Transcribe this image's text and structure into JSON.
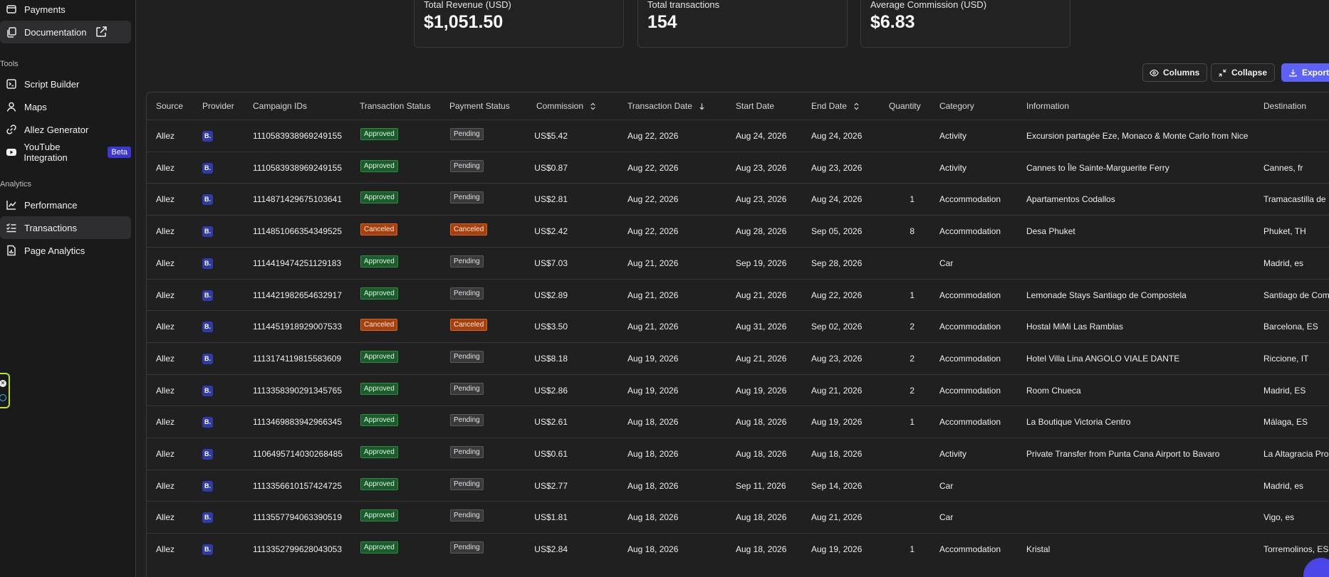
{
  "sidebar": {
    "items_top": [
      {
        "label": "Payments",
        "icon": "wallet-icon"
      },
      {
        "label": "Documentation",
        "icon": "documents-icon",
        "external": "external-link-icon"
      }
    ],
    "tools_label": "Tools",
    "tools": [
      {
        "label": "Script Builder",
        "icon": "script-icon"
      },
      {
        "label": "Maps",
        "icon": "user-icon"
      },
      {
        "label": "Allez Generator",
        "icon": "link-icon"
      },
      {
        "label": "YouTube Integration",
        "icon": "youtube-icon",
        "badge": "Beta"
      }
    ],
    "analytics_label": "Analytics",
    "analytics": [
      {
        "label": "Performance",
        "icon": "line-chart-icon"
      },
      {
        "label": "Transactions",
        "icon": "list-check-icon",
        "active": true
      },
      {
        "label": "Page Analytics",
        "icon": "file-chart-icon"
      }
    ]
  },
  "stats": [
    {
      "label": "Total Revenue (USD)",
      "value": "$1,051.50"
    },
    {
      "label": "Total transactions",
      "value": "154"
    },
    {
      "label": "Average Commission (USD)",
      "value": "$6.83"
    }
  ],
  "toolbar": {
    "columns_label": "Columns",
    "collapse_label": "Collapse",
    "export_label": "Export",
    "accent": "#5b62f5"
  },
  "table": {
    "headers": {
      "source": "Source",
      "provider": "Provider",
      "campaign": "Campaign IDs",
      "tx_status": "Transaction Status",
      "pay_status": "Payment Status",
      "commission": "Commission",
      "tx_date": "Transaction Date",
      "start": "Start Date",
      "end": "End Date",
      "qty": "Quantity",
      "category": "Category",
      "info": "Information",
      "dest": "Destination"
    },
    "provider_badge": "B.",
    "rows": [
      {
        "source": "Allez",
        "campaign": "1110583938969249155",
        "tx": "Approved",
        "pay": "Pending",
        "commission": "US$5.42",
        "txdate": "Aug 22, 2026",
        "start": "Aug 24, 2026",
        "end": "Aug 24, 2026",
        "qty": "",
        "category": "Activity",
        "info": "Excursion partagée Eze, Monaco & Monte Carlo from Nice",
        "dest": ""
      },
      {
        "source": "Allez",
        "campaign": "1110583938969249155",
        "tx": "Approved",
        "pay": "Pending",
        "commission": "US$0.87",
        "txdate": "Aug 22, 2026",
        "start": "Aug 23, 2026",
        "end": "Aug 23, 2026",
        "qty": "",
        "category": "Activity",
        "info": "Cannes to Île Sainte-Marguerite Ferry",
        "dest": "Cannes, fr"
      },
      {
        "source": "Allez",
        "campaign": "1114871429675103641",
        "tx": "Approved",
        "pay": "Pending",
        "commission": "US$2.81",
        "txdate": "Aug 22, 2026",
        "start": "Aug 23, 2026",
        "end": "Aug 24, 2026",
        "qty": "1",
        "category": "Accommodation",
        "info": "Apartamentos Codallos",
        "dest": "Tramacastilla de"
      },
      {
        "source": "Allez",
        "campaign": "1114851066354349525",
        "tx": "Canceled",
        "pay": "Canceled",
        "commission": "US$2.42",
        "txdate": "Aug 22, 2026",
        "start": "Aug 28, 2026",
        "end": "Sep 05, 2026",
        "qty": "8",
        "category": "Accommodation",
        "info": "Desa Phuket",
        "dest": "Phuket, TH"
      },
      {
        "source": "Allez",
        "campaign": "1114419474251129183",
        "tx": "Approved",
        "pay": "Pending",
        "commission": "US$7.03",
        "txdate": "Aug 21, 2026",
        "start": "Sep 19, 2026",
        "end": "Sep 28, 2026",
        "qty": "",
        "category": "Car",
        "info": "",
        "dest": "Madrid, es"
      },
      {
        "source": "Allez",
        "campaign": "1114421982654632917",
        "tx": "Approved",
        "pay": "Pending",
        "commission": "US$2.89",
        "txdate": "Aug 21, 2026",
        "start": "Aug 21, 2026",
        "end": "Aug 22, 2026",
        "qty": "1",
        "category": "Accommodation",
        "info": "Lemonade Stays Santiago de Compostela",
        "dest": "Santiago de Com"
      },
      {
        "source": "Allez",
        "campaign": "1114451918929007533",
        "tx": "Canceled",
        "pay": "Canceled",
        "commission": "US$3.50",
        "txdate": "Aug 21, 2026",
        "start": "Aug 31, 2026",
        "end": "Sep 02, 2026",
        "qty": "2",
        "category": "Accommodation",
        "info": "Hostal MiMi Las Ramblas",
        "dest": "Barcelona, ES"
      },
      {
        "source": "Allez",
        "campaign": "1113174119815583609",
        "tx": "Approved",
        "pay": "Pending",
        "commission": "US$8.18",
        "txdate": "Aug 19, 2026",
        "start": "Aug 21, 2026",
        "end": "Aug 23, 2026",
        "qty": "2",
        "category": "Accommodation",
        "info": "Hotel Villa Lina ANGOLO VIALE DANTE",
        "dest": "Riccione, IT"
      },
      {
        "source": "Allez",
        "campaign": "1113358390291345765",
        "tx": "Approved",
        "pay": "Pending",
        "commission": "US$2.86",
        "txdate": "Aug 19, 2026",
        "start": "Aug 19, 2026",
        "end": "Aug 21, 2026",
        "qty": "2",
        "category": "Accommodation",
        "info": "Room Chueca",
        "dest": "Madrid, ES"
      },
      {
        "source": "Allez",
        "campaign": "1113469883942966345",
        "tx": "Approved",
        "pay": "Pending",
        "commission": "US$2.61",
        "txdate": "Aug 18, 2026",
        "start": "Aug 18, 2026",
        "end": "Aug 19, 2026",
        "qty": "1",
        "category": "Accommodation",
        "info": "La Boutique Victoria Centro",
        "dest": "Málaga, ES"
      },
      {
        "source": "Allez",
        "campaign": "1106495714030268485",
        "tx": "Approved",
        "pay": "Pending",
        "commission": "US$0.61",
        "txdate": "Aug 18, 2026",
        "start": "Aug 18, 2026",
        "end": "Aug 18, 2026",
        "qty": "",
        "category": "Activity",
        "info": "Private Transfer from Punta Cana Airport to Bavaro",
        "dest": "La Altagracia Pro"
      },
      {
        "source": "Allez",
        "campaign": "1113356610157424725",
        "tx": "Approved",
        "pay": "Pending",
        "commission": "US$2.77",
        "txdate": "Aug 18, 2026",
        "start": "Sep 11, 2026",
        "end": "Sep 14, 2026",
        "qty": "",
        "category": "Car",
        "info": "",
        "dest": "Madrid, es"
      },
      {
        "source": "Allez",
        "campaign": "1113557794063390519",
        "tx": "Approved",
        "pay": "Pending",
        "commission": "US$1.81",
        "txdate": "Aug 18, 2026",
        "start": "Aug 18, 2026",
        "end": "Aug 21, 2026",
        "qty": "",
        "category": "Car",
        "info": "",
        "dest": "Vigo, es"
      },
      {
        "source": "Allez",
        "campaign": "1113352799628043053",
        "tx": "Approved",
        "pay": "Pending",
        "commission": "US$2.84",
        "txdate": "Aug 18, 2026",
        "start": "Aug 18, 2026",
        "end": "Aug 19, 2026",
        "qty": "1",
        "category": "Accommodation",
        "info": "Kristal",
        "dest": "Torremolinos, ES"
      }
    ]
  }
}
